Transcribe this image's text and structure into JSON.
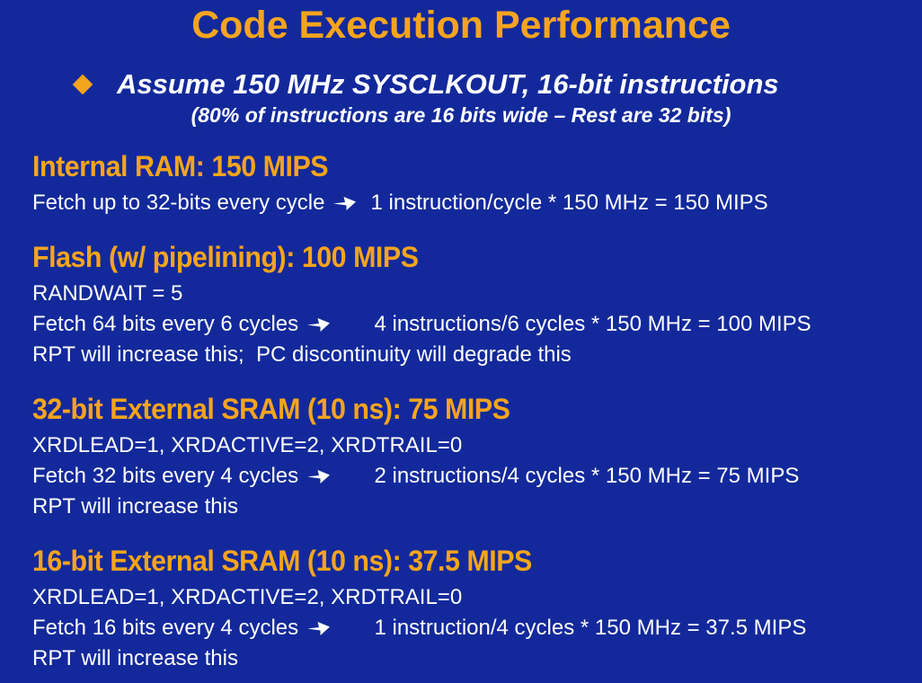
{
  "colors": {
    "background": "#13299B",
    "accent_orange": "#F5A41E",
    "text_white": "#FFFFFF"
  },
  "title": "Code Execution Performance",
  "bullet": {
    "icon": "diamond-bullet-icon",
    "text": "Assume 150 MHz SYSCLKOUT, 16-bit instructions",
    "subtext": "(80% of instructions are 16 bits wide – Rest are 32 bits)"
  },
  "sections": [
    {
      "heading": "Internal RAM: 150 MIPS",
      "lines": [
        {
          "segments": [
            {
              "text": "Fetch up to 32-bits every cycle "
            },
            {
              "arrow": true
            },
            {
              "text": "  1 instruction/cycle * 150 MHz = 150 MIPS"
            }
          ]
        }
      ]
    },
    {
      "heading": "Flash (w/ pipelining): 100 MIPS",
      "lines": [
        {
          "segments": [
            {
              "text": "RANDWAIT = 5"
            }
          ]
        },
        {
          "segments": [
            {
              "text": "Fetch 64 bits every 6 cycles "
            },
            {
              "arrow": true
            },
            {
              "text": "       4 instructions/6 cycles * 150 MHz = 100 MIPS"
            }
          ]
        },
        {
          "segments": [
            {
              "text": "RPT will increase this;  PC discontinuity will degrade this"
            }
          ]
        }
      ]
    },
    {
      "heading": "32-bit External SRAM (10 ns): 75 MIPS",
      "lines": [
        {
          "segments": [
            {
              "text": "XRDLEAD=1, XRDACTIVE=2, XRDTRAIL=0"
            }
          ]
        },
        {
          "segments": [
            {
              "text": "Fetch 32 bits every 4 cycles "
            },
            {
              "arrow": true
            },
            {
              "text": "       2 instructions/4 cycles * 150 MHz = 75 MIPS"
            }
          ]
        },
        {
          "segments": [
            {
              "text": "RPT will increase this"
            }
          ]
        }
      ]
    },
    {
      "heading": "16-bit External SRAM (10 ns): 37.5 MIPS",
      "lines": [
        {
          "segments": [
            {
              "text": "XRDLEAD=1, XRDACTIVE=2, XRDTRAIL=0"
            }
          ]
        },
        {
          "segments": [
            {
              "text": "Fetch 16 bits every 4 cycles "
            },
            {
              "arrow": true
            },
            {
              "text": "       1 instruction/4 cycles * 150 MHz = 37.5 MIPS"
            }
          ]
        },
        {
          "segments": [
            {
              "text": "RPT will increase this"
            }
          ]
        }
      ]
    }
  ]
}
